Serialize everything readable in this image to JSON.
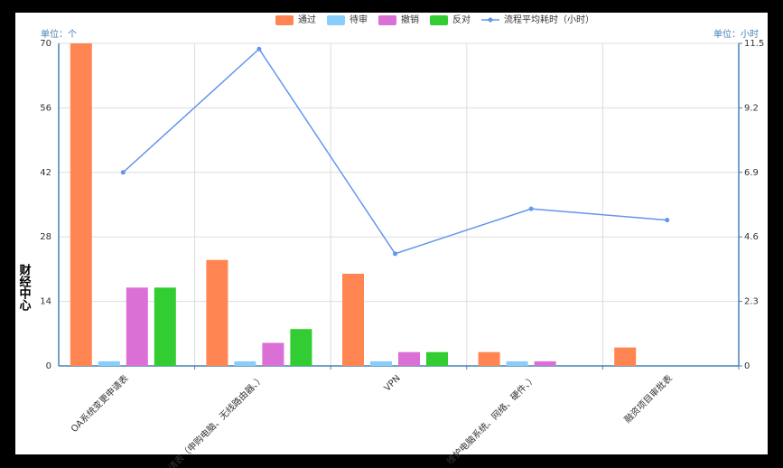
{
  "chart_data": {
    "type": "bar",
    "y_label": "财经中心",
    "y_unit": "单位：个",
    "y2_unit": "单位：小时",
    "categories": [
      "OA系统变更申请表",
      "申请表（申购电脑、无线路由器、）",
      "VPN",
      "维护电脑系统、网络、硬件、）",
      "融资项目审批表"
    ],
    "series": [
      {
        "name": "通过",
        "color": "#ff8652",
        "values": [
          70,
          23,
          20,
          3,
          4
        ]
      },
      {
        "name": "待审",
        "color": "#87cefa",
        "values": [
          1,
          1,
          1,
          1,
          0
        ]
      },
      {
        "name": "撤销",
        "color": "#da70d6",
        "values": [
          17,
          5,
          3,
          1,
          0
        ]
      },
      {
        "name": "反对",
        "color": "#32cd32",
        "values": [
          17,
          8,
          3,
          0,
          0
        ]
      },
      {
        "name": "流程平均耗时（小时）",
        "color": "#6495ed",
        "type": "line",
        "axis": "y2",
        "values": [
          6.9,
          11.3,
          4.0,
          5.6,
          5.2
        ]
      }
    ],
    "ylim": [
      0,
      70
    ],
    "yticks": [
      0,
      14,
      28,
      42,
      56,
      70
    ],
    "y2lim": [
      0,
      11.5
    ],
    "y2ticks": [
      0,
      2.3,
      4.6,
      6.9,
      9.2,
      11.5
    ],
    "grid": true
  }
}
